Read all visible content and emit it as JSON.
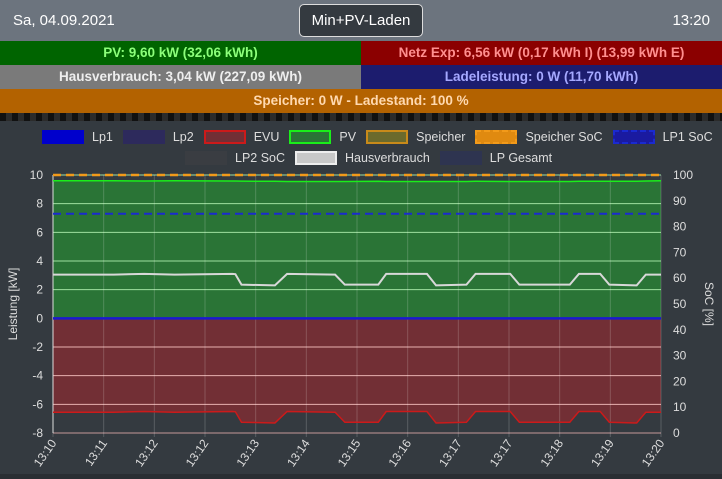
{
  "header": {
    "date": "Sa, 04.09.2021",
    "mode_button": "Min+PV-Laden",
    "time": "13:20"
  },
  "status": {
    "pv": "PV: 9,60 kW (32,06 kWh)",
    "netz": "Netz Exp: 6,56 kW (0,17 kWh I) (13,99 kWh E)",
    "haus": "Hausverbrauch: 3,04 kW (227,09 kWh)",
    "lade": "Ladeleistung: 0 W (11,70 kWh)",
    "speicher": "Speicher: 0 W - Ladestand: 100 %"
  },
  "colors": {
    "pv_bg": "#006400",
    "pv_text": "#8cff7a",
    "netz_bg": "#8b0000",
    "netz_text": "#ff8f8f",
    "haus_bg": "#7a7a7a",
    "haus_text": "#eeeeee",
    "lade_bg": "#1c1c6e",
    "lade_text": "#a5a8ff",
    "speicher_bg": "#b36200",
    "speicher_text": "#ffd9b0"
  },
  "chart_data": {
    "type": "line",
    "ylabel": "Leistung [kW]",
    "y2label": "SoC [%]",
    "ylim": [
      -8,
      10
    ],
    "y2lim": [
      0,
      100
    ],
    "yticks": [
      "10",
      "8",
      "6",
      "4",
      "2",
      "0",
      "-2",
      "-4",
      "-6",
      "-8"
    ],
    "y2ticks": [
      "100",
      "90",
      "80",
      "70",
      "60",
      "50",
      "40",
      "30",
      "20",
      "10",
      "0"
    ],
    "xticks": [
      "13:10",
      "13:11",
      "13:12",
      "13:12",
      "13:13",
      "13:14",
      "13:15",
      "13:16",
      "13:17",
      "13:17",
      "13:18",
      "13:19",
      "13:20"
    ],
    "legend": [
      {
        "label": "Lp1",
        "fill": "#0000cc",
        "stroke": "#0000cc"
      },
      {
        "label": "Lp2",
        "fill": "#2d2a5c",
        "stroke": "#2d2a5c"
      },
      {
        "label": "EVU",
        "fill": "#722f35",
        "stroke": "#cc1a1a"
      },
      {
        "label": "PV",
        "fill": "#2a7436",
        "stroke": "#1aee1a"
      },
      {
        "label": "Speicher",
        "fill": "#6b6a2c",
        "stroke": "#c88a1a"
      },
      {
        "label": "Speicher SoC",
        "fill": "#e08a10",
        "stroke": "#f29a1a",
        "dashed": true
      },
      {
        "label": "LP1 SoC",
        "fill": "#1a1aa0",
        "stroke": "#1a2ad0",
        "dashed": true
      },
      {
        "label": "LP2 SoC",
        "fill": "#3a3d42",
        "stroke": "#3a3d42"
      },
      {
        "label": "Hausverbrauch",
        "fill": "#c8c8c8",
        "stroke": "#eeeeee"
      },
      {
        "label": "LP Gesamt",
        "fill": "#2e3450",
        "stroke": "#2e3450"
      }
    ],
    "x_minutes": [
      0,
      1,
      1.5,
      2,
      3,
      2.95,
      3.1,
      3.65,
      3.85,
      4.64,
      4.8,
      5.35,
      5.48,
      6.15,
      6.3,
      6.8,
      6.95,
      7.52,
      7.67,
      8.5,
      8.65,
      9.0,
      9.15,
      9.6,
      9.75,
      10
    ],
    "series": [
      {
        "name": "Hausverbrauch",
        "values": [
          3.05,
          3.05,
          3.1,
          3.05,
          3.08,
          3.1,
          2.35,
          2.3,
          3.1,
          3.05,
          2.35,
          2.35,
          3.1,
          3.1,
          2.3,
          2.35,
          3.1,
          3.1,
          2.35,
          2.35,
          3.1,
          3.1,
          2.35,
          2.3,
          3.05,
          3.05
        ]
      },
      {
        "name": "EVU",
        "values": [
          -6.55,
          -6.55,
          -6.5,
          -6.55,
          -6.52,
          -6.5,
          -7.25,
          -7.3,
          -6.5,
          -6.55,
          -7.25,
          -7.25,
          -6.5,
          -6.5,
          -7.3,
          -7.25,
          -6.5,
          -6.5,
          -7.25,
          -7.25,
          -6.5,
          -6.5,
          -7.25,
          -7.3,
          -6.55,
          -6.55
        ]
      },
      {
        "name": "PV",
        "values": [
          9.6,
          9.6,
          9.58,
          9.6,
          9.58,
          9.58,
          9.57,
          9.56,
          9.55,
          9.55,
          9.55,
          9.56,
          9.55,
          9.55,
          9.55,
          9.55,
          9.56,
          9.55,
          9.55,
          9.55,
          9.56,
          9.56,
          9.56,
          9.56,
          9.58,
          9.6
        ]
      },
      {
        "name": "Lp1",
        "values": [
          0,
          0,
          0,
          0,
          0,
          0,
          0,
          0,
          0,
          0,
          0,
          0,
          0,
          0,
          0,
          0,
          0,
          0,
          0,
          0,
          0,
          0,
          0,
          0,
          0,
          0
        ]
      },
      {
        "name": "Speicher SoC",
        "soc": 100
      },
      {
        "name": "LP1 SoC",
        "soc": 85
      }
    ]
  }
}
